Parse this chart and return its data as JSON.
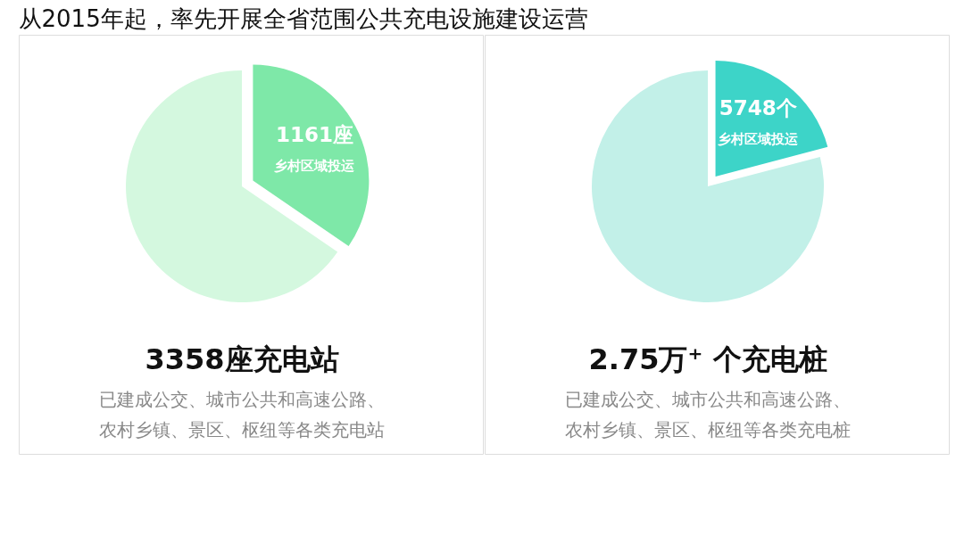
{
  "chart_data": [
    {
      "type": "pie",
      "title": "从2015年起，率先开展全省范围公共充电设施建设运营",
      "categories": [
        "乡村区域投运",
        null
      ],
      "values": [
        1161,
        2197
      ],
      "colors": [
        "#7ee8a8",
        "#d4f8df"
      ],
      "value_labels": [
        "1161座",
        null
      ],
      "annotations": [
        "3358座充电站",
        "已建成公交、城市公共和高速公路、",
        "农村乡镇、景区、枢纽等各类充电站"
      ]
    },
    {
      "type": "pie",
      "categories": [
        "乡村区域投运",
        null
      ],
      "values": [
        5748,
        21752
      ],
      "colors": [
        "#3dd4c8",
        "#c2f0e8"
      ],
      "value_labels": [
        "5748个",
        null
      ],
      "annotations": [
        "2.75万⁺ 个充电桩",
        "已建成公交、城市公共和高速公路、",
        "农村乡镇、景区、枢纽等各类充电桩"
      ]
    }
  ]
}
